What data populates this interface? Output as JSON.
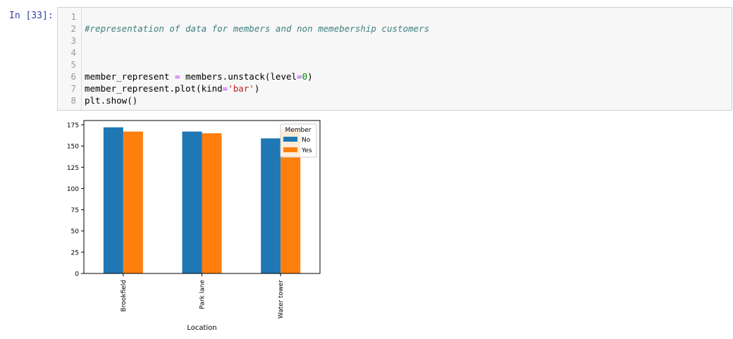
{
  "cell": {
    "prompt": "In [33]:",
    "lines": [
      {
        "num": "1",
        "segments": []
      },
      {
        "num": "2",
        "segments": [
          {
            "text": "#representation of data for members and non memebership customers",
            "cls": "c-comment"
          }
        ]
      },
      {
        "num": "3",
        "segments": []
      },
      {
        "num": "4",
        "segments": []
      },
      {
        "num": "5",
        "segments": []
      },
      {
        "num": "6",
        "segments": [
          {
            "text": "member_represent ",
            "cls": ""
          },
          {
            "text": "=",
            "cls": "c-op"
          },
          {
            "text": " members.unstack(level",
            "cls": ""
          },
          {
            "text": "=",
            "cls": "c-op"
          },
          {
            "text": "0",
            "cls": "c-num"
          },
          {
            "text": ")",
            "cls": ""
          }
        ]
      },
      {
        "num": "7",
        "segments": [
          {
            "text": "member_represent.plot(kind",
            "cls": ""
          },
          {
            "text": "=",
            "cls": "c-op"
          },
          {
            "text": "'bar'",
            "cls": "c-str"
          },
          {
            "text": ")",
            "cls": ""
          }
        ]
      },
      {
        "num": "8",
        "segments": [
          {
            "text": "plt.show()",
            "cls": ""
          }
        ]
      }
    ]
  },
  "chart_data": {
    "type": "bar",
    "categories": [
      "Brookfield",
      "Park lane",
      "Water tower"
    ],
    "series": [
      {
        "name": "No",
        "color": "#1f77b4",
        "values": [
          172,
          167,
          159
        ]
      },
      {
        "name": "Yes",
        "color": "#ff7f0e",
        "values": [
          167,
          165,
          169
        ]
      }
    ],
    "xlabel": "Location",
    "ylabel": "",
    "ylim": [
      0,
      180
    ],
    "yticks": [
      0,
      25,
      50,
      75,
      100,
      125,
      150,
      175
    ],
    "legend_title": "Member",
    "legend_position": "top-right",
    "grid": false
  }
}
